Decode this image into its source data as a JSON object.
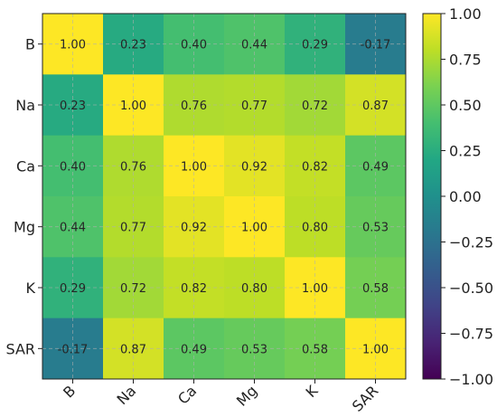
{
  "chart_data": {
    "type": "heatmap",
    "x_labels": [
      "B",
      "Na",
      "Ca",
      "Mg",
      "K",
      "SAR"
    ],
    "y_labels": [
      "B",
      "Na",
      "Ca",
      "Mg",
      "K",
      "SAR"
    ],
    "values": [
      [
        1.0,
        0.23,
        0.4,
        0.44,
        0.29,
        -0.17
      ],
      [
        0.23,
        1.0,
        0.76,
        0.77,
        0.72,
        0.87
      ],
      [
        0.4,
        0.76,
        1.0,
        0.92,
        0.82,
        0.49
      ],
      [
        0.44,
        0.77,
        0.92,
        1.0,
        0.8,
        0.53
      ],
      [
        0.29,
        0.72,
        0.82,
        0.8,
        1.0,
        0.58
      ],
      [
        -0.17,
        0.87,
        0.49,
        0.53,
        0.58,
        1.0
      ]
    ],
    "value_format": "0.00",
    "colormap": "viridis",
    "vmin": -1.0,
    "vmax": 1.0,
    "colorbar_ticks": [
      "1.00",
      "0.75",
      "0.50",
      "0.25",
      "0.00",
      "−0.25",
      "−0.50",
      "−0.75",
      "−1.00"
    ],
    "colorbar_tick_values": [
      1.0,
      0.75,
      0.5,
      0.25,
      0.0,
      -0.25,
      -0.5,
      -0.75,
      -1.0
    ],
    "grid": true,
    "x_tick_rotation_deg": -45
  }
}
